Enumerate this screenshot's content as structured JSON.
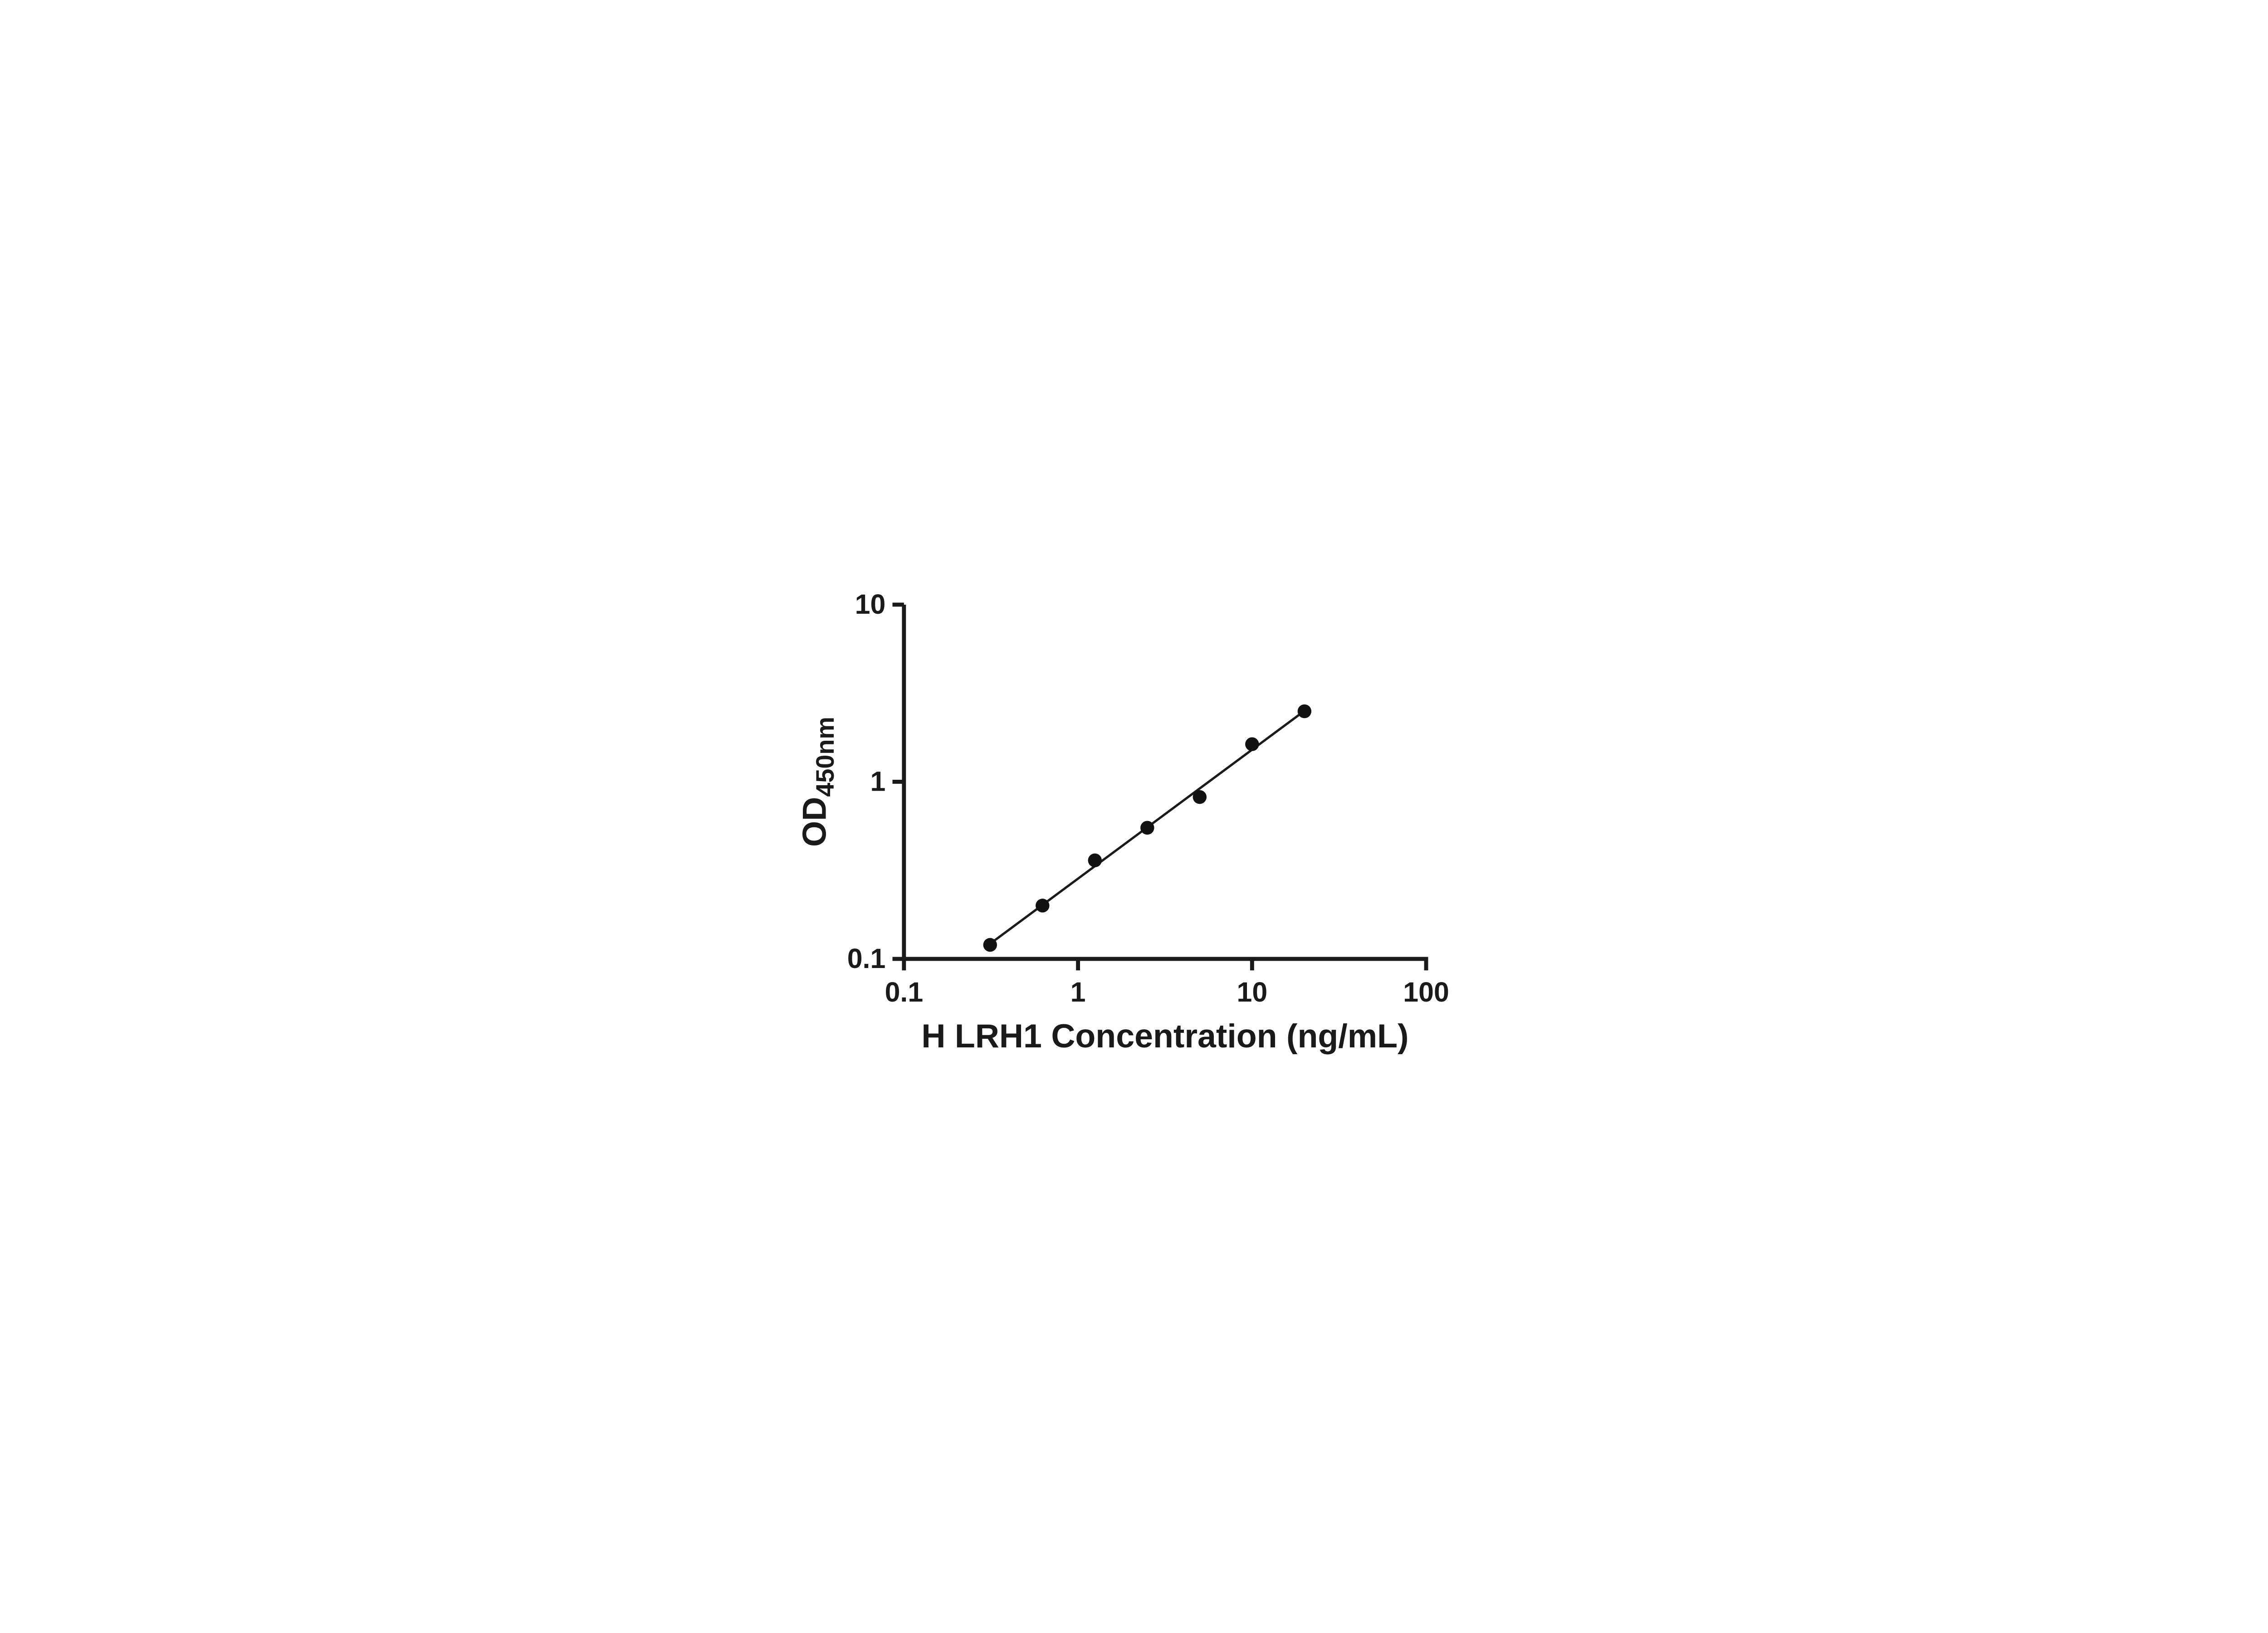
{
  "chart_data": {
    "type": "scatter",
    "title": "",
    "x_label": "H LRH1 Concentration (ng/mL)",
    "y_label_main": "OD",
    "y_label_sub": "450nm",
    "x_scale": "log",
    "y_scale": "log",
    "x_range": [
      0.1,
      100
    ],
    "y_range": [
      0.1,
      10
    ],
    "grid": "off",
    "legend": "none",
    "x_ticks": [
      {
        "value": 0.1,
        "label": "0.1"
      },
      {
        "value": 1,
        "label": "1"
      },
      {
        "value": 10,
        "label": "10"
      },
      {
        "value": 100,
        "label": "100"
      }
    ],
    "y_ticks": [
      {
        "value": 0.1,
        "label": "0.1"
      },
      {
        "value": 1,
        "label": "1"
      },
      {
        "value": 10,
        "label": "10"
      }
    ],
    "series": [
      {
        "name": "standard-curve",
        "marker": "filled-circle",
        "points": [
          {
            "x": 0.3125,
            "y": 0.12
          },
          {
            "x": 0.625,
            "y": 0.2
          },
          {
            "x": 1.25,
            "y": 0.36
          },
          {
            "x": 2.5,
            "y": 0.55
          },
          {
            "x": 5,
            "y": 0.82
          },
          {
            "x": 10,
            "y": 1.63
          },
          {
            "x": 20,
            "y": 2.5
          }
        ]
      }
    ],
    "trend_line": {
      "fit": "log-log-linear-regression",
      "x_start": 0.3125,
      "x_end": 20
    },
    "axis_color": "#1a1a1a",
    "marker_color": "#111111",
    "line_color": "#1a1a1a"
  }
}
